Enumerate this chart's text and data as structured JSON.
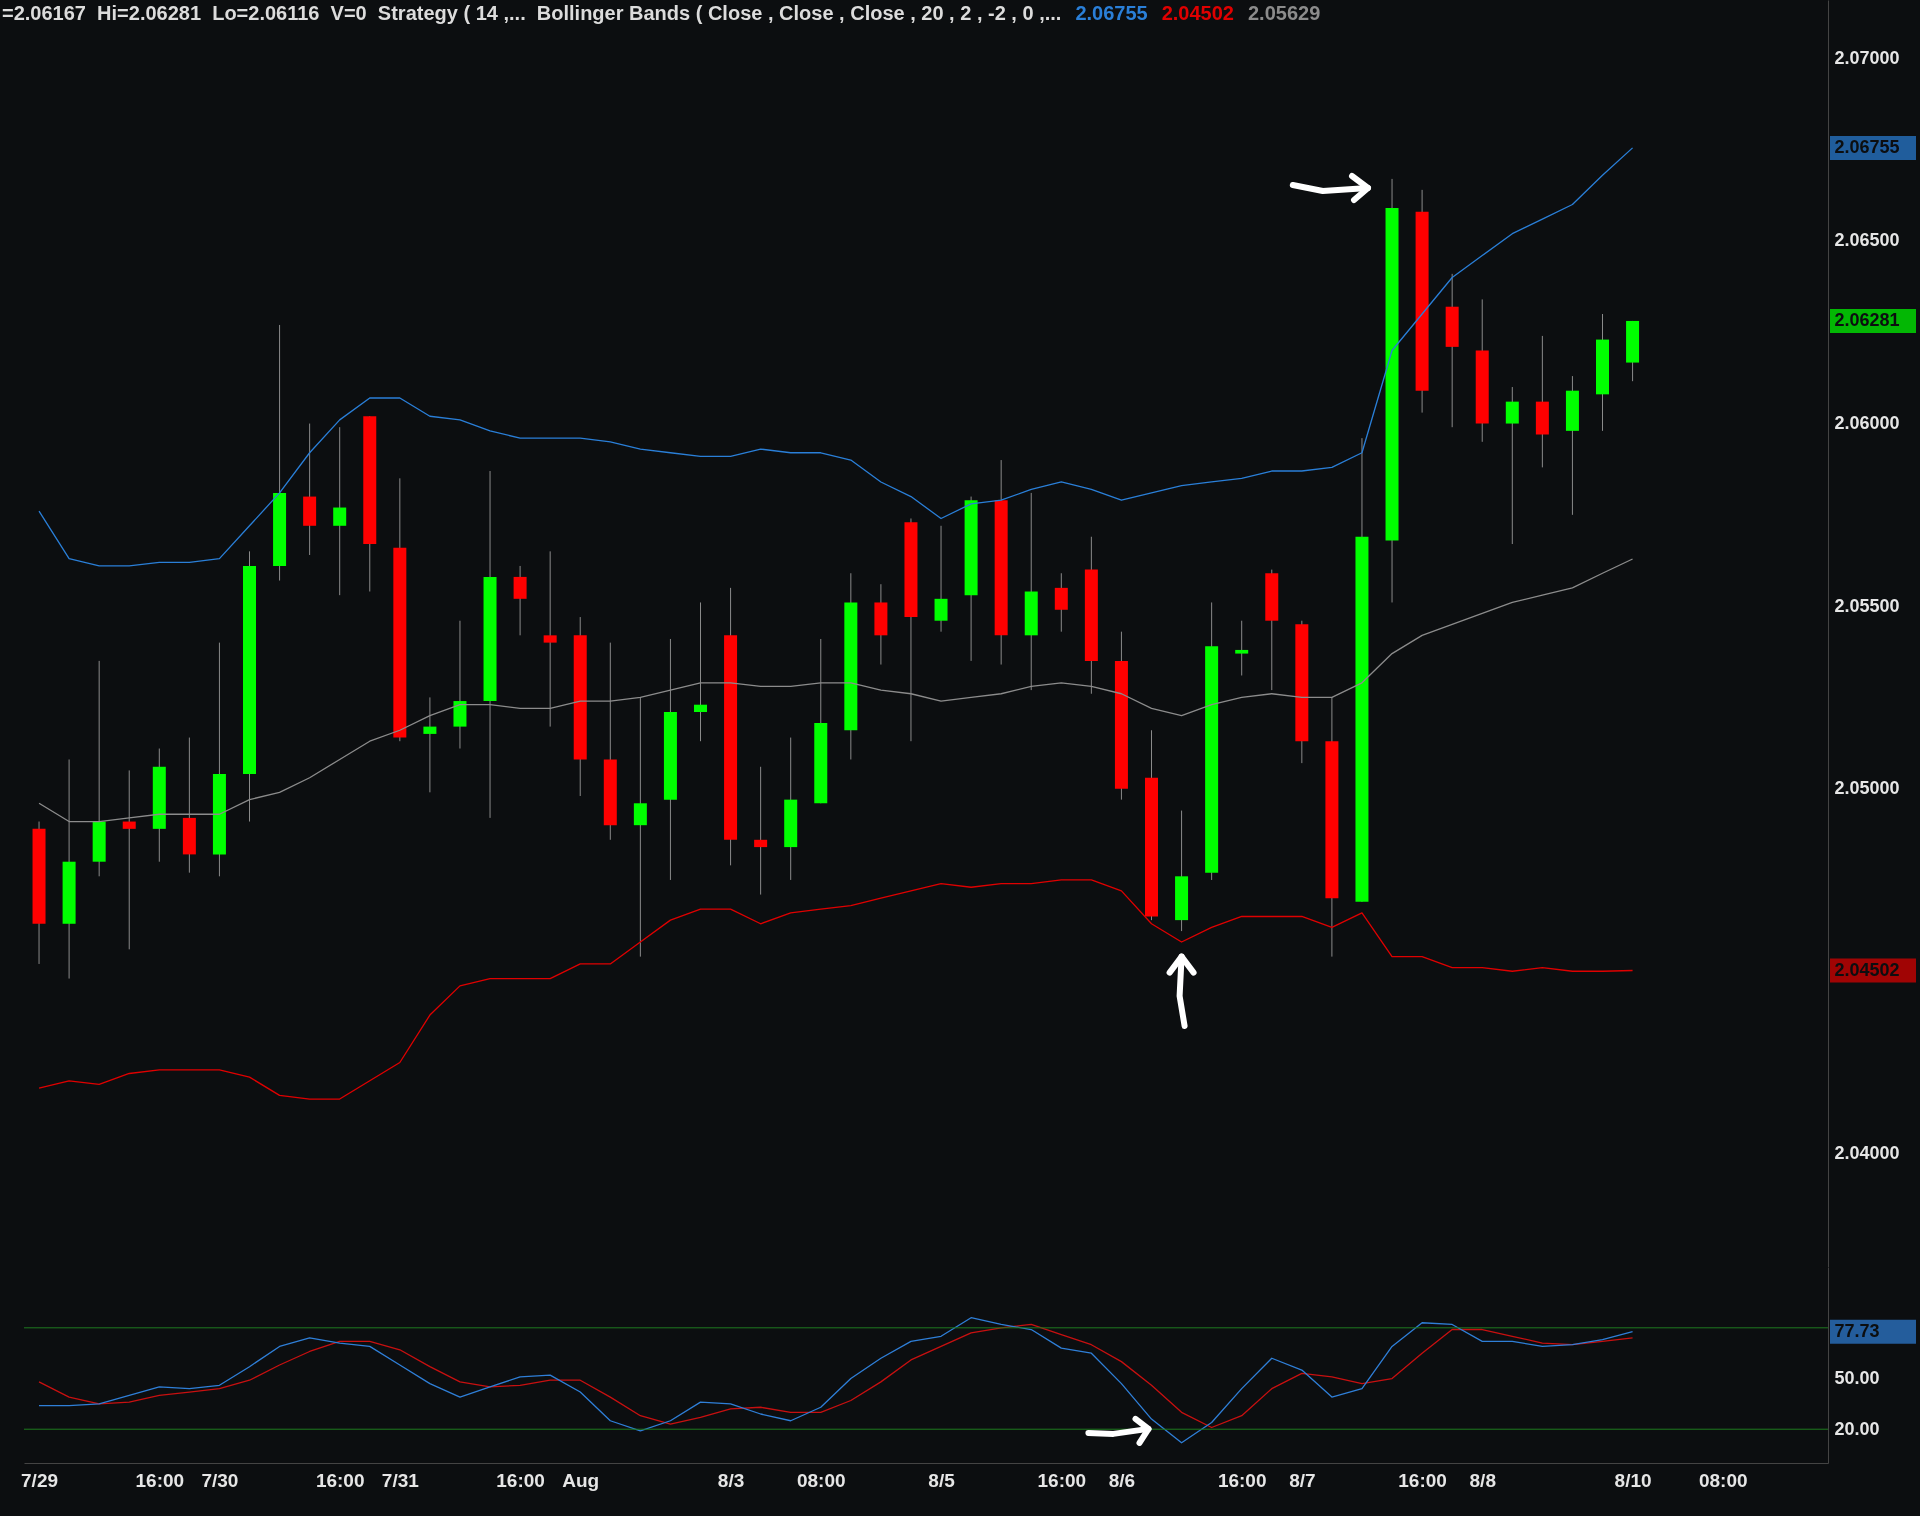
{
  "chart_data": [
    {
      "type": "candlestick",
      "title": "=2.06167  Hi=2.06281  Lo=2.06116  V=0  Strategy ( 14 ,...  Bollinger Bands ( Close , Close , Close , 20 , 2 , -2 , 0 ,...",
      "categories": [
        null,
        null,
        null,
        null,
        null,
        null,
        null,
        null,
        null,
        null,
        null,
        null,
        null,
        null,
        null,
        null,
        null,
        null,
        null,
        null,
        null,
        null,
        null,
        null,
        null,
        null,
        null,
        null,
        null,
        null,
        null,
        null,
        null,
        null,
        null,
        null,
        null,
        null,
        null,
        null,
        null,
        null,
        null,
        null,
        null,
        null,
        null,
        null,
        null,
        null,
        null,
        null,
        null,
        null,
        null,
        null,
        null,
        null,
        null,
        null
      ],
      "ohlc": [
        [
          2.0489,
          2.0491,
          2.0452,
          2.0463
        ],
        [
          2.0463,
          2.0508,
          2.0448,
          2.048
        ],
        [
          2.048,
          2.0535,
          2.0476,
          2.0491
        ],
        [
          2.0491,
          2.0505,
          2.0456,
          2.0489
        ],
        [
          2.0489,
          2.0511,
          2.048,
          2.0506
        ],
        [
          2.0492,
          2.0514,
          2.0477,
          2.0482
        ],
        [
          2.0482,
          2.054,
          2.0476,
          2.0504
        ],
        [
          2.0504,
          2.0565,
          2.0491,
          2.0561
        ],
        [
          2.0561,
          2.0627,
          2.0557,
          2.0581
        ],
        [
          2.058,
          2.06,
          2.0564,
          2.0572
        ],
        [
          2.0572,
          2.0599,
          2.0553,
          2.0577
        ],
        [
          2.0602,
          2.0602,
          2.0554,
          2.0567
        ],
        [
          2.0566,
          2.0585,
          2.0513,
          2.0514
        ],
        [
          2.0515,
          2.0525,
          2.0499,
          2.0517
        ],
        [
          2.0517,
          2.0546,
          2.0511,
          2.0524
        ],
        [
          2.0524,
          2.0587,
          2.0492,
          2.0558
        ],
        [
          2.0558,
          2.0561,
          2.0542,
          2.0552
        ],
        [
          2.0542,
          2.0565,
          2.0517,
          2.054
        ],
        [
          2.0542,
          2.0547,
          2.0498,
          2.0508
        ],
        [
          2.0508,
          2.054,
          2.0486,
          2.049
        ],
        [
          2.049,
          2.0525,
          2.0454,
          2.0496
        ],
        [
          2.0497,
          2.0541,
          2.0475,
          2.0521
        ],
        [
          2.0521,
          2.0551,
          2.0513,
          2.0523
        ],
        [
          2.0542,
          2.0555,
          2.0479,
          2.0486
        ],
        [
          2.0486,
          2.0506,
          2.0471,
          2.0484
        ],
        [
          2.0484,
          2.0514,
          2.0475,
          2.0497
        ],
        [
          2.0496,
          2.0541,
          2.0496,
          2.0518
        ],
        [
          2.0516,
          2.0559,
          2.0508,
          2.0551
        ],
        [
          2.0551,
          2.0556,
          2.0534,
          2.0542
        ],
        [
          2.0573,
          2.0574,
          2.0513,
          2.0547
        ],
        [
          2.0546,
          2.0572,
          2.0543,
          2.0552
        ],
        [
          2.0553,
          2.058,
          2.0535,
          2.0579
        ],
        [
          2.0579,
          2.059,
          2.0534,
          2.0542
        ],
        [
          2.0542,
          2.0581,
          2.0527,
          2.0554
        ],
        [
          2.0555,
          2.0559,
          2.0543,
          2.0549
        ],
        [
          2.056,
          2.0569,
          2.0526,
          2.0535
        ],
        [
          2.0535,
          2.0543,
          2.0497,
          2.05
        ],
        [
          2.0503,
          2.0516,
          2.0464,
          2.0465
        ],
        [
          2.0464,
          2.0494,
          2.0461,
          2.0476
        ],
        [
          2.0477,
          2.0551,
          2.0475,
          2.0539
        ],
        [
          2.0537,
          2.0546,
          2.0531,
          2.0538
        ],
        [
          2.0559,
          2.056,
          2.0527,
          2.0546
        ],
        [
          2.0545,
          2.0546,
          2.0507,
          2.0513
        ],
        [
          2.0513,
          2.0525,
          2.0454,
          2.047
        ],
        [
          2.0469,
          2.0596,
          2.0469,
          2.0569
        ],
        [
          2.0568,
          2.0667,
          2.0551,
          2.0659
        ],
        [
          2.0658,
          2.0664,
          2.0603,
          2.0609
        ],
        [
          2.0632,
          2.0641,
          2.0599,
          2.0621
        ],
        [
          2.062,
          2.0634,
          2.0595,
          2.06
        ],
        [
          2.06,
          2.061,
          2.0567,
          2.0606
        ],
        [
          2.0606,
          2.0624,
          2.0588,
          2.0597
        ],
        [
          2.0598,
          2.0613,
          2.0575,
          2.0609
        ],
        [
          2.0608,
          2.063,
          2.0598,
          2.0623
        ],
        [
          2.06167,
          2.06281,
          2.06116,
          2.06281
        ],
        null,
        null,
        null,
        null,
        null,
        null
      ],
      "colors": [
        "#ff0000",
        "#00ff00",
        "#00ff00",
        "#ff0000",
        "#00ff00",
        "#ff0000",
        "#00ff00",
        "#00ff00",
        "#00ff00",
        "#ff0000",
        "#00ff00",
        "#ff0000",
        "#ff0000",
        "#00ff00",
        "#00ff00",
        "#00ff00",
        "#ff0000",
        "#ff0000",
        "#ff0000",
        "#ff0000",
        "#00ff00",
        "#00ff00",
        "#00ff00",
        "#ff0000",
        "#ff0000",
        "#00ff00",
        "#00ff00",
        "#00ff00",
        "#ff0000",
        "#ff0000",
        "#00ff00",
        "#00ff00",
        "#ff0000",
        "#00ff00",
        "#ff0000",
        "#ff0000",
        "#ff0000",
        "#ff0000",
        "#00ff00",
        "#00ff00",
        "#00ff00",
        "#ff0000",
        "#ff0000",
        "#ff0000",
        "#00ff00",
        "#00ff00",
        "#ff0000",
        "#ff0000",
        "#ff0000",
        "#00ff00",
        "#ff0000",
        "#00ff00",
        "#00ff00",
        "#00ff00",
        null,
        null,
        null,
        null,
        null,
        null
      ],
      "series": [
        {
          "type": "line",
          "name": "2.06755",
          "color": "#2a7fd8",
          "values": [
            2.0576,
            2.0563,
            2.0561,
            2.0561,
            2.0562,
            2.0562,
            2.0563,
            2.0572,
            2.0581,
            2.0592,
            2.0601,
            2.0607,
            2.0607,
            2.0602,
            2.0601,
            2.0598,
            2.0596,
            2.0596,
            2.0596,
            2.0595,
            2.0593,
            2.0592,
            2.0591,
            2.0591,
            2.0593,
            2.0592,
            2.0592,
            2.059,
            2.0584,
            2.058,
            2.0574,
            2.0578,
            2.0579,
            2.0582,
            2.0584,
            2.0582,
            2.0579,
            2.0581,
            2.0583,
            2.0584,
            2.0585,
            2.0587,
            2.0587,
            2.0588,
            2.0592,
            2.062,
            2.063,
            2.064,
            2.0646,
            2.0652,
            2.0656,
            2.066,
            2.0668,
            2.06755,
            null,
            null,
            null,
            null,
            null,
            null
          ]
        },
        {
          "type": "line",
          "name": "2.04502",
          "color": "#e00000",
          "values": [
            2.0418,
            2.042,
            2.0419,
            2.0422,
            2.0423,
            2.0423,
            2.0423,
            2.0421,
            2.0416,
            2.0415,
            2.0415,
            2.042,
            2.0425,
            2.0438,
            2.0446,
            2.0448,
            2.0448,
            2.0448,
            2.0452,
            2.0452,
            2.0458,
            2.0464,
            2.0467,
            2.0467,
            2.0463,
            2.0466,
            2.0467,
            2.0468,
            2.047,
            2.0472,
            2.0474,
            2.0473,
            2.0474,
            2.0474,
            2.0475,
            2.0475,
            2.0472,
            2.0463,
            2.0458,
            2.0462,
            2.0465,
            2.0465,
            2.0465,
            2.0462,
            2.0466,
            2.0454,
            2.0454,
            2.0451,
            2.0451,
            2.045,
            2.0451,
            2.045,
            2.045,
            2.04502,
            null,
            null,
            null,
            null,
            null,
            null
          ]
        },
        {
          "type": "line",
          "name": "2.05629",
          "color": "#8c8c8c",
          "values": [
            2.0496,
            2.0491,
            2.0491,
            2.0492,
            2.0493,
            2.0493,
            2.0493,
            2.0497,
            2.0499,
            2.0503,
            2.0508,
            2.0513,
            2.0516,
            2.052,
            2.0523,
            2.0523,
            2.0522,
            2.0522,
            2.0524,
            2.0524,
            2.0525,
            2.0527,
            2.0529,
            2.0529,
            2.0528,
            2.0528,
            2.0529,
            2.0529,
            2.0527,
            2.0526,
            2.0524,
            2.0525,
            2.0526,
            2.0528,
            2.0529,
            2.0528,
            2.0526,
            2.0522,
            2.052,
            2.0523,
            2.0525,
            2.0526,
            2.0525,
            2.0525,
            2.0529,
            2.0537,
            2.0542,
            2.0545,
            2.0548,
            2.0551,
            2.0553,
            2.0555,
            2.0559,
            2.05629,
            null,
            null,
            null,
            null,
            null,
            null
          ]
        }
      ],
      "ylim": [
        2.0369,
        2.0716
      ],
      "yticks": [
        {
          "value": 2.04,
          "label": "2.04000"
        },
        {
          "value": 2.05,
          "label": "2.05000"
        },
        {
          "value": 2.055,
          "label": "2.05500"
        },
        {
          "value": 2.06,
          "label": "2.06000"
        },
        {
          "value": 2.065,
          "label": "2.06500"
        },
        {
          "value": 2.07,
          "label": "2.07000"
        },
        2.06755,
        2.06281,
        2.04502
      ],
      "tick_labels": "y"
    },
    {
      "type": "line",
      "categories": [
        "7/29",
        null,
        null,
        null,
        "16:00",
        null,
        "7/30",
        null,
        null,
        null,
        "16:00",
        null,
        "7/31",
        null,
        null,
        null,
        "16:00",
        null,
        "Aug",
        null,
        null,
        null,
        null,
        "8/3",
        null,
        null,
        "08:00",
        null,
        null,
        null,
        "8/5",
        null,
        null,
        null,
        "16:00",
        null,
        "8/6",
        null,
        null,
        null,
        "16:00",
        null,
        "8/7",
        null,
        null,
        null,
        "16:00",
        null,
        "8/8",
        null,
        null,
        null,
        null,
        "8/10",
        null,
        null,
        "08:00",
        null,
        null,
        null
      ],
      "series": [
        {
          "color": "#2f7fd8",
          "values": [
            34,
            34,
            35,
            40,
            45,
            44,
            46,
            57,
            69,
            74,
            71,
            69,
            58,
            47,
            39,
            45,
            51,
            52,
            42,
            25,
            19,
            25,
            36,
            35,
            29,
            25,
            33,
            50,
            62,
            72,
            75,
            86,
            82,
            79,
            68,
            65,
            47,
            26,
            12,
            24,
            44,
            62,
            55,
            39,
            44,
            69,
            83,
            82,
            72,
            72,
            69,
            70,
            73,
            77.73,
            null,
            null,
            null,
            null,
            null,
            null
          ]
        },
        {
          "color": "#c81010",
          "values": [
            48,
            39,
            35,
            36,
            40,
            42,
            44,
            49,
            58,
            66,
            72,
            72,
            67,
            57,
            48,
            45,
            46,
            49,
            49,
            39,
            28,
            23,
            27,
            32,
            33,
            30,
            30,
            37,
            48,
            61,
            69,
            77,
            80,
            82,
            76,
            70,
            60,
            46,
            30,
            21,
            28,
            44,
            53,
            51,
            47,
            50,
            65,
            79,
            79,
            75,
            71,
            70,
            72,
            74,
            null,
            null,
            null,
            null,
            null,
            null
          ]
        }
      ],
      "ref_lines": [
        {
          "axis": "y",
          "value": 80,
          "color": "#1f7a1f"
        },
        {
          "axis": "y",
          "value": 20,
          "color": "#1f7a1f"
        }
      ],
      "ylim": [
        0,
        116
      ],
      "yticks": [
        {
          "value": 20,
          "label": "20.00"
        },
        {
          "value": 50,
          "label": "50.00"
        },
        77.73
      ]
    }
  ]
}
